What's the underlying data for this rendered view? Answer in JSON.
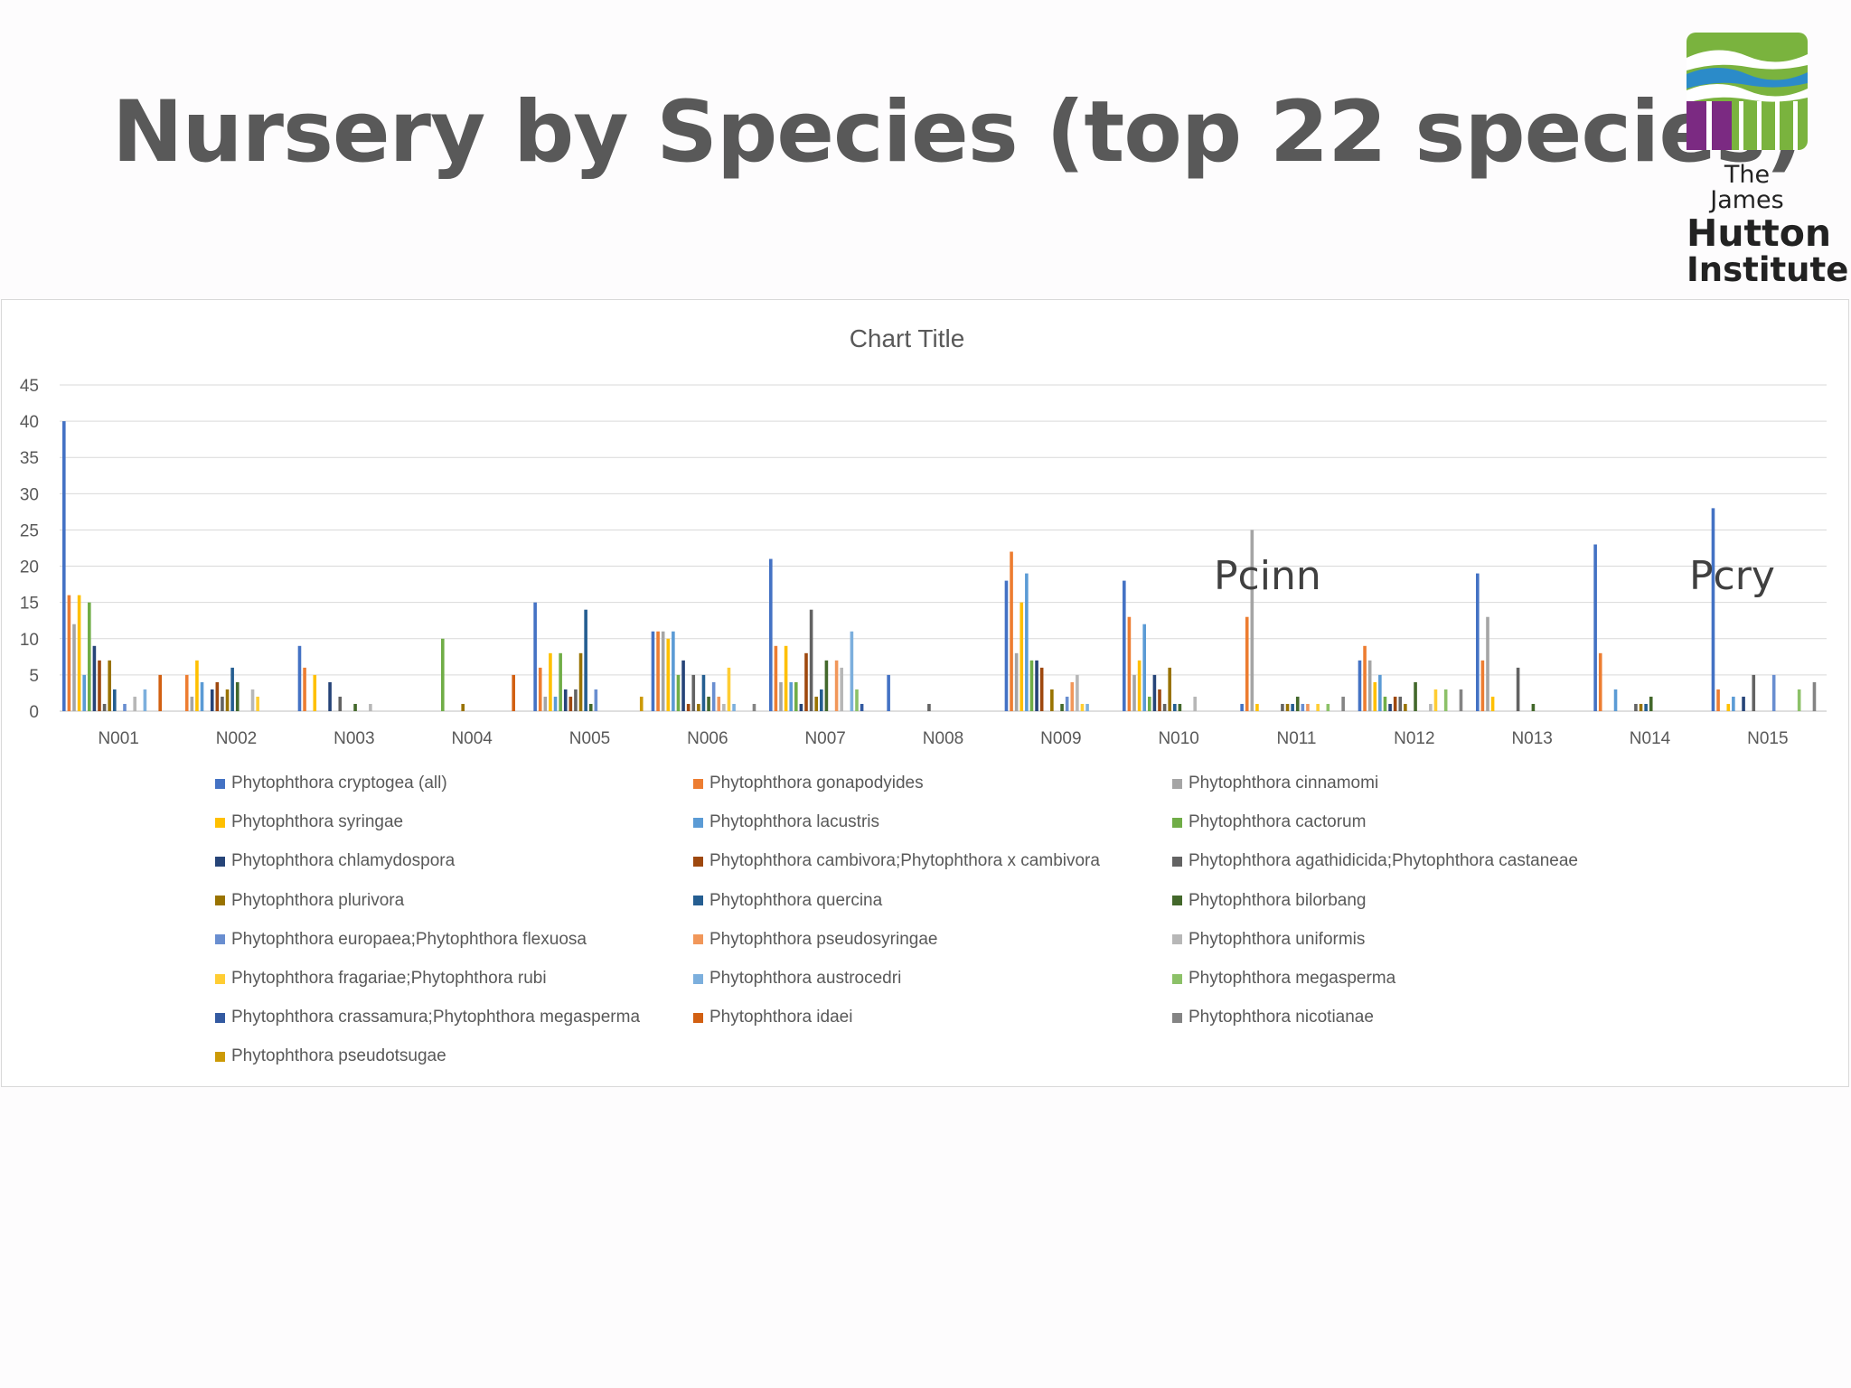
{
  "slide": {
    "title": "Nursery by Species (top 22 species)",
    "logo": {
      "line1": "The James",
      "line2": "Hutton",
      "line3": "Institute"
    }
  },
  "colors": {
    "title": "#595959",
    "logo_green": "#7ab33e",
    "logo_purple": "#7b2a82",
    "logo_blue": "#2b8bc9"
  },
  "annotations": [
    {
      "text": "Pcinn",
      "category": "N011"
    },
    {
      "text": "Pcry",
      "category": "N015"
    }
  ],
  "chart_data": {
    "type": "bar",
    "title": "Chart Title",
    "xlabel": "",
    "ylabel": "",
    "ylim": [
      0,
      45
    ],
    "yticks": [
      0,
      5,
      10,
      15,
      20,
      25,
      30,
      35,
      40,
      45
    ],
    "grid": true,
    "legend_position": "bottom",
    "categories": [
      "N001",
      "N002",
      "N003",
      "N004",
      "N005",
      "N006",
      "N007",
      "N008",
      "N009",
      "N010",
      "N011",
      "N012",
      "N013",
      "N014",
      "N015"
    ],
    "series": [
      {
        "name": "Phytophthora cryptogea (all)",
        "color": "#4472c4",
        "values": [
          40,
          0,
          9,
          0,
          15,
          11,
          21,
          5,
          18,
          18,
          1,
          7,
          19,
          23,
          28
        ]
      },
      {
        "name": "Phytophthora gonapodyides",
        "color": "#ed7d31",
        "values": [
          16,
          5,
          6,
          0,
          6,
          11,
          9,
          0,
          22,
          13,
          13,
          9,
          7,
          8,
          3
        ]
      },
      {
        "name": "Phytophthora cinnamomi",
        "color": "#a5a5a5",
        "values": [
          12,
          2,
          0,
          0,
          2,
          11,
          4,
          0,
          8,
          5,
          25,
          7,
          13,
          0,
          0
        ]
      },
      {
        "name": "Phytophthora syringae",
        "color": "#ffc000",
        "values": [
          16,
          7,
          5,
          0,
          8,
          10,
          9,
          0,
          15,
          7,
          1,
          4,
          2,
          0,
          1
        ]
      },
      {
        "name": "Phytophthora lacustris",
        "color": "#5b9bd5",
        "values": [
          5,
          4,
          0,
          0,
          2,
          11,
          4,
          0,
          19,
          12,
          0,
          5,
          0,
          3,
          2
        ]
      },
      {
        "name": "Phytophthora cactorum",
        "color": "#70ad47",
        "values": [
          15,
          0,
          0,
          10,
          8,
          5,
          4,
          0,
          7,
          2,
          0,
          2,
          0,
          0,
          0
        ]
      },
      {
        "name": "Phytophthora chlamydospora",
        "color": "#264478",
        "values": [
          9,
          3,
          4,
          0,
          3,
          7,
          1,
          0,
          7,
          5,
          0,
          1,
          0,
          0,
          2
        ]
      },
      {
        "name": "Phytophthora cambivora;Phytophthora x cambivora",
        "color": "#9e480e",
        "values": [
          7,
          4,
          0,
          0,
          2,
          1,
          8,
          0,
          6,
          3,
          0,
          2,
          0,
          0,
          0
        ]
      },
      {
        "name": "Phytophthora agathidicida;Phytophthora castaneae",
        "color": "#636363",
        "values": [
          1,
          2,
          2,
          0,
          3,
          5,
          14,
          1,
          0,
          1,
          1,
          2,
          6,
          1,
          5
        ]
      },
      {
        "name": "Phytophthora plurivora",
        "color": "#997300",
        "values": [
          7,
          3,
          0,
          1,
          8,
          1,
          2,
          0,
          3,
          6,
          1,
          1,
          0,
          1,
          0
        ]
      },
      {
        "name": "Phytophthora quercina",
        "color": "#255e91",
        "values": [
          3,
          6,
          0,
          0,
          14,
          5,
          3,
          0,
          0,
          1,
          1,
          0,
          0,
          1,
          0
        ]
      },
      {
        "name": "Phytophthora bilorbang",
        "color": "#43682b",
        "values": [
          0,
          4,
          1,
          0,
          1,
          2,
          7,
          0,
          1,
          1,
          2,
          4,
          1,
          2,
          0
        ]
      },
      {
        "name": "Phytophthora europaea;Phytophthora flexuosa",
        "color": "#698ed0",
        "values": [
          1,
          0,
          0,
          0,
          3,
          4,
          0,
          0,
          2,
          0,
          1,
          0,
          0,
          0,
          5
        ]
      },
      {
        "name": "Phytophthora pseudosyringae",
        "color": "#f1975a",
        "values": [
          0,
          0,
          0,
          0,
          0,
          2,
          7,
          0,
          4,
          0,
          1,
          0,
          0,
          0,
          0
        ]
      },
      {
        "name": "Phytophthora uniformis",
        "color": "#b7b7b7",
        "values": [
          2,
          3,
          1,
          0,
          0,
          1,
          6,
          0,
          5,
          2,
          0,
          1,
          0,
          0,
          0
        ]
      },
      {
        "name": "Phytophthora fragariae;Phytophthora rubi",
        "color": "#ffcd33",
        "values": [
          0,
          2,
          0,
          0,
          0,
          6,
          0,
          0,
          1,
          0,
          1,
          3,
          0,
          0,
          0
        ]
      },
      {
        "name": "Phytophthora austrocedri",
        "color": "#7cafdd",
        "values": [
          3,
          0,
          0,
          0,
          0,
          1,
          11,
          0,
          1,
          0,
          0,
          0,
          0,
          0,
          0
        ]
      },
      {
        "name": "Phytophthora megasperma",
        "color": "#8cc168",
        "values": [
          0,
          0,
          0,
          0,
          0,
          0,
          3,
          0,
          0,
          0,
          1,
          3,
          0,
          0,
          3
        ]
      },
      {
        "name": "Phytophthora crassamura;Phytophthora megasperma",
        "color": "#335aa1",
        "values": [
          0,
          0,
          0,
          0,
          0,
          0,
          1,
          0,
          0,
          0,
          0,
          0,
          0,
          0,
          0
        ]
      },
      {
        "name": "Phytophthora idaei",
        "color": "#d26012",
        "values": [
          5,
          0,
          0,
          5,
          0,
          0,
          0,
          0,
          0,
          0,
          0,
          0,
          0,
          0,
          0
        ]
      },
      {
        "name": "Phytophthora nicotianae",
        "color": "#848484",
        "values": [
          0,
          0,
          0,
          0,
          0,
          1,
          0,
          0,
          0,
          0,
          2,
          3,
          0,
          0,
          4
        ]
      },
      {
        "name": "Phytophthora pseudotsugae",
        "color": "#cc9a06",
        "values": [
          0,
          0,
          0,
          0,
          2,
          0,
          0,
          0,
          0,
          0,
          0,
          0,
          0,
          0,
          0
        ]
      }
    ]
  }
}
